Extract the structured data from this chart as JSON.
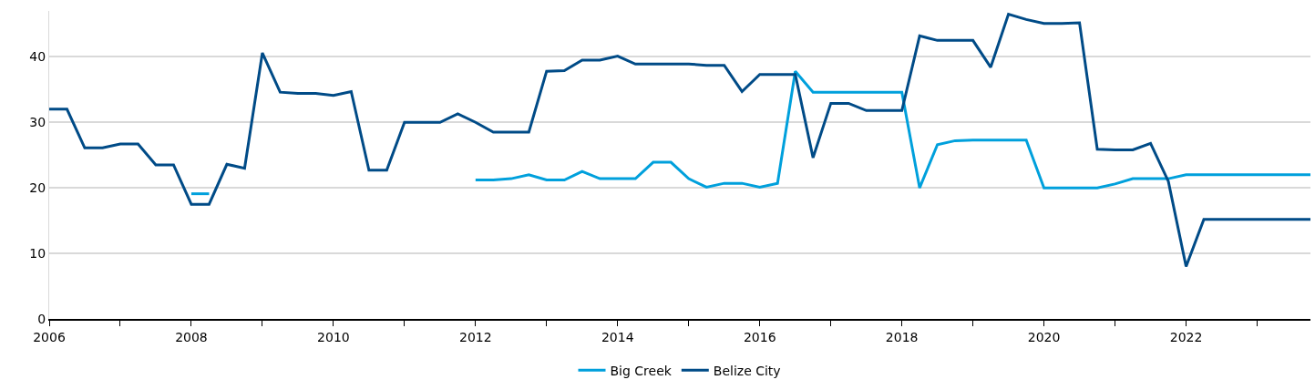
{
  "chart_data": {
    "type": "line",
    "x": [
      2006,
      2006.25,
      2006.5,
      2006.75,
      2007,
      2007.25,
      2007.5,
      2007.75,
      2008,
      2008.25,
      2008.5,
      2008.75,
      2009,
      2009.25,
      2009.5,
      2009.75,
      2010,
      2010.25,
      2010.5,
      2010.75,
      2011,
      2011.25,
      2011.5,
      2011.75,
      2012,
      2012.25,
      2012.5,
      2012.75,
      2013,
      2013.25,
      2013.5,
      2013.75,
      2014,
      2014.25,
      2014.5,
      2014.75,
      2015,
      2015.25,
      2015.5,
      2015.75,
      2016,
      2016.25,
      2016.5,
      2016.75,
      2017,
      2017.25,
      2017.5,
      2017.75,
      2018,
      2018.25,
      2018.5,
      2018.75,
      2019,
      2019.25,
      2019.5,
      2019.75,
      2020,
      2020.25,
      2020.5,
      2020.75,
      2021,
      2021.25,
      2021.5,
      2021.75,
      2022,
      2022.25,
      2022.5,
      2022.75,
      2023,
      2023.25,
      2023.5,
      2023.75
    ],
    "series": [
      {
        "name": "Big Creek",
        "color": "#00a0dc",
        "values": [
          null,
          null,
          null,
          null,
          null,
          null,
          null,
          null,
          19.1,
          19.1,
          null,
          null,
          null,
          null,
          null,
          null,
          null,
          null,
          null,
          null,
          null,
          null,
          null,
          null,
          21.2,
          21.2,
          21.4,
          22.0,
          21.2,
          21.2,
          22.5,
          21.4,
          21.4,
          21.4,
          23.9,
          23.9,
          21.4,
          20.1,
          20.7,
          20.7,
          20.1,
          20.7,
          37.8,
          34.6,
          34.6,
          34.6,
          34.6,
          34.6,
          34.6,
          20.0,
          26.6,
          27.2,
          27.3,
          27.3,
          27.3,
          27.3,
          20.0,
          20.0,
          20.0,
          20.0,
          20.6,
          21.4,
          21.4,
          21.4,
          22.0,
          22.0,
          22.0,
          22.0,
          22.0,
          22.0,
          22.0,
          22.0
        ]
      },
      {
        "name": "Belize City",
        "color": "#004b87",
        "values": [
          32.0,
          32.0,
          26.1,
          26.1,
          26.7,
          26.7,
          23.5,
          23.5,
          17.5,
          17.5,
          23.6,
          23.0,
          40.6,
          34.6,
          34.4,
          34.4,
          34.1,
          34.7,
          22.7,
          22.7,
          30.0,
          30.0,
          30.0,
          31.3,
          30.0,
          28.5,
          28.5,
          28.5,
          37.8,
          37.9,
          39.5,
          39.5,
          40.1,
          38.9,
          38.9,
          38.9,
          38.9,
          38.7,
          38.7,
          34.7,
          37.3,
          37.3,
          37.3,
          24.6,
          32.9,
          32.9,
          31.8,
          31.8,
          31.8,
          43.2,
          42.5,
          42.5,
          42.5,
          38.4,
          46.5,
          45.7,
          45.1,
          45.1,
          45.2,
          25.9,
          25.8,
          25.8,
          26.8,
          21.0,
          8.0,
          15.2,
          15.2,
          15.2,
          15.2,
          15.2,
          15.2,
          15.2
        ]
      }
    ],
    "xlim": [
      2006,
      2023.75
    ],
    "xticks": [
      2006,
      {
        "value": 2007,
        "label": null
      },
      2008,
      {
        "value": 2009,
        "label": null
      },
      2010,
      {
        "value": 2011,
        "label": null
      },
      2012,
      {
        "value": 2013,
        "label": null
      },
      2014,
      {
        "value": 2015,
        "label": null
      },
      2016,
      {
        "value": 2017,
        "label": null
      },
      2018,
      {
        "value": 2019,
        "label": null
      },
      2020,
      {
        "value": 2021,
        "label": null
      },
      2022,
      {
        "value": 2023,
        "label": null
      }
    ],
    "ylim": [
      0,
      47
    ],
    "yticks": [
      0,
      10,
      20,
      30,
      40
    ],
    "grid": "y",
    "legend": "bottom",
    "marker": "none",
    "line_style": "solid"
  }
}
